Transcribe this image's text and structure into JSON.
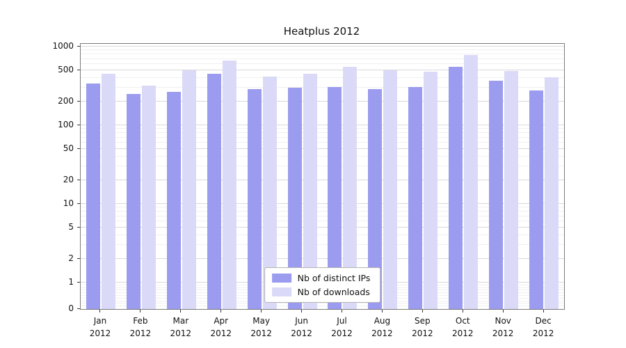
{
  "title": "Heatplus 2012",
  "chart_data": {
    "type": "bar",
    "categories": [
      "Jan 2012",
      "Feb 2012",
      "Mar 2012",
      "Apr 2012",
      "May 2012",
      "Jun 2012",
      "Jul 2012",
      "Aug 2012",
      "Sep 2012",
      "Oct 2012",
      "Nov 2012",
      "Dec 2012"
    ],
    "series": [
      {
        "name": "Nb of distinct IPs",
        "color": "#9b9bef",
        "values": [
          340,
          250,
          265,
          450,
          290,
          300,
          305,
          290,
          305,
          550,
          370,
          280
        ]
      },
      {
        "name": "Nb of downloads",
        "color": "#dadaf8",
        "values": [
          450,
          320,
          500,
          660,
          420,
          450,
          550,
          500,
          480,
          790,
          490,
          410
        ]
      }
    ],
    "title": "Heatplus 2012",
    "xlabel": "",
    "ylabel": "",
    "yscale": "symlog",
    "ylim": [
      0,
      1000
    ],
    "yticks": [
      0,
      1,
      2,
      5,
      10,
      20,
      50,
      100,
      200,
      500,
      1000
    ],
    "grid": true,
    "legend_position": "lower center"
  }
}
